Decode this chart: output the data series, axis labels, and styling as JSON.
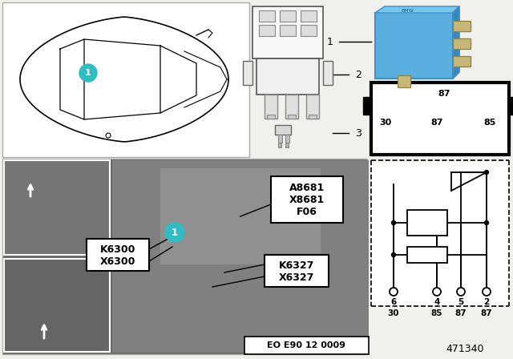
{
  "bg_color": "#f0f0ec",
  "white": "#ffffff",
  "black": "#000000",
  "relay_blue": "#5aafe0",
  "relay_blue_dark": "#4090c8",
  "teal_circle": "#30bcc0",
  "gray_photo": "#7a7a7a",
  "gray_inset": "#909090",
  "doc_number": "471340",
  "eo_label": "EO E90 12 0009",
  "pin_bottom_nums": [
    "6",
    "4",
    "5",
    "2"
  ],
  "pin_bottom_labels": [
    "30",
    "85",
    "87",
    "87"
  ]
}
